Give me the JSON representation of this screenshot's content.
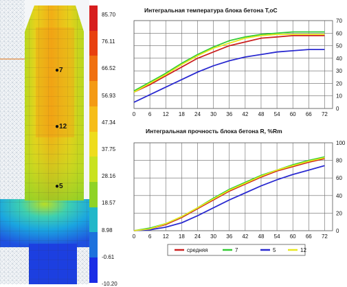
{
  "model": {
    "point_labels": [
      "7",
      "12",
      "5"
    ]
  },
  "color_scale": {
    "labels": [
      "85.70",
      "76.11",
      "66.52",
      "56.93",
      "47.34",
      "37.75",
      "28.16",
      "18.57",
      "8.98",
      "-0.61",
      "-10.20"
    ],
    "colors": [
      "#d71e1e",
      "#e8400f",
      "#f07010",
      "#f49a14",
      "#f6bd18",
      "#eedc1c",
      "#c9e21f",
      "#8fd326",
      "#21b7c9",
      "#1d72dd",
      "#1a2de6"
    ]
  },
  "legend": {
    "items": [
      {
        "label": "средняя",
        "color": "#cc2020"
      },
      {
        "label": "7",
        "color": "#33cc33"
      },
      {
        "label": "5",
        "color": "#2a2ad0"
      },
      {
        "label": "12",
        "color": "#e8e820"
      }
    ]
  },
  "chart_data": [
    {
      "type": "line",
      "title": "Интегральная температура блока бетона T,oC",
      "xlabel": "",
      "ylabel": "",
      "x": [
        0,
        6,
        12,
        18,
        24,
        30,
        36,
        42,
        48,
        54,
        60,
        66,
        72
      ],
      "xlim": [
        0,
        75
      ],
      "ylim": [
        0,
        70
      ],
      "y_ticks": [
        0,
        10,
        20,
        30,
        40,
        50,
        60,
        70
      ],
      "y_axis_side": "right",
      "series": [
        {
          "name": "средняя",
          "color": "#cc2020",
          "values": [
            13,
            19,
            26,
            33,
            40,
            45,
            50,
            53,
            56,
            57,
            58,
            58,
            58
          ]
        },
        {
          "name": "7",
          "color": "#33cc33",
          "values": [
            14,
            21,
            28,
            36,
            43,
            49,
            54,
            57,
            59,
            60,
            61,
            61,
            61
          ]
        },
        {
          "name": "5",
          "color": "#2a2ad0",
          "values": [
            5,
            11,
            17,
            23,
            29,
            34,
            38,
            41,
            43,
            45,
            46,
            47,
            47
          ]
        },
        {
          "name": "12",
          "color": "#e8e820",
          "values": [
            13,
            20,
            27,
            35,
            42,
            48,
            52,
            56,
            58,
            59,
            59,
            59,
            59
          ]
        }
      ]
    },
    {
      "type": "line",
      "title": "Интегральная прочность блока бетона R, %Rm",
      "xlabel": "",
      "ylabel": "",
      "x": [
        0,
        6,
        12,
        18,
        24,
        30,
        36,
        42,
        48,
        54,
        60,
        66,
        72
      ],
      "xlim": [
        0,
        75
      ],
      "ylim": [
        0,
        100
      ],
      "y_ticks": [
        0,
        20,
        40,
        60,
        80,
        100
      ],
      "y_axis_side": "right",
      "series": [
        {
          "name": "средняя",
          "color": "#cc2020",
          "values": [
            0,
            2,
            7,
            15,
            25,
            35,
            45,
            53,
            61,
            68,
            73,
            78,
            82
          ]
        },
        {
          "name": "7",
          "color": "#33cc33",
          "values": [
            0,
            3,
            8,
            16,
            26,
            37,
            47,
            55,
            63,
            69,
            75,
            80,
            84
          ]
        },
        {
          "name": "5",
          "color": "#2a2ad0",
          "values": [
            0,
            1,
            4,
            9,
            17,
            26,
            35,
            43,
            51,
            58,
            64,
            69,
            74
          ]
        },
        {
          "name": "12",
          "color": "#e8e820",
          "values": [
            0,
            2,
            8,
            16,
            26,
            36,
            46,
            54,
            62,
            69,
            74,
            79,
            83
          ]
        }
      ]
    }
  ]
}
